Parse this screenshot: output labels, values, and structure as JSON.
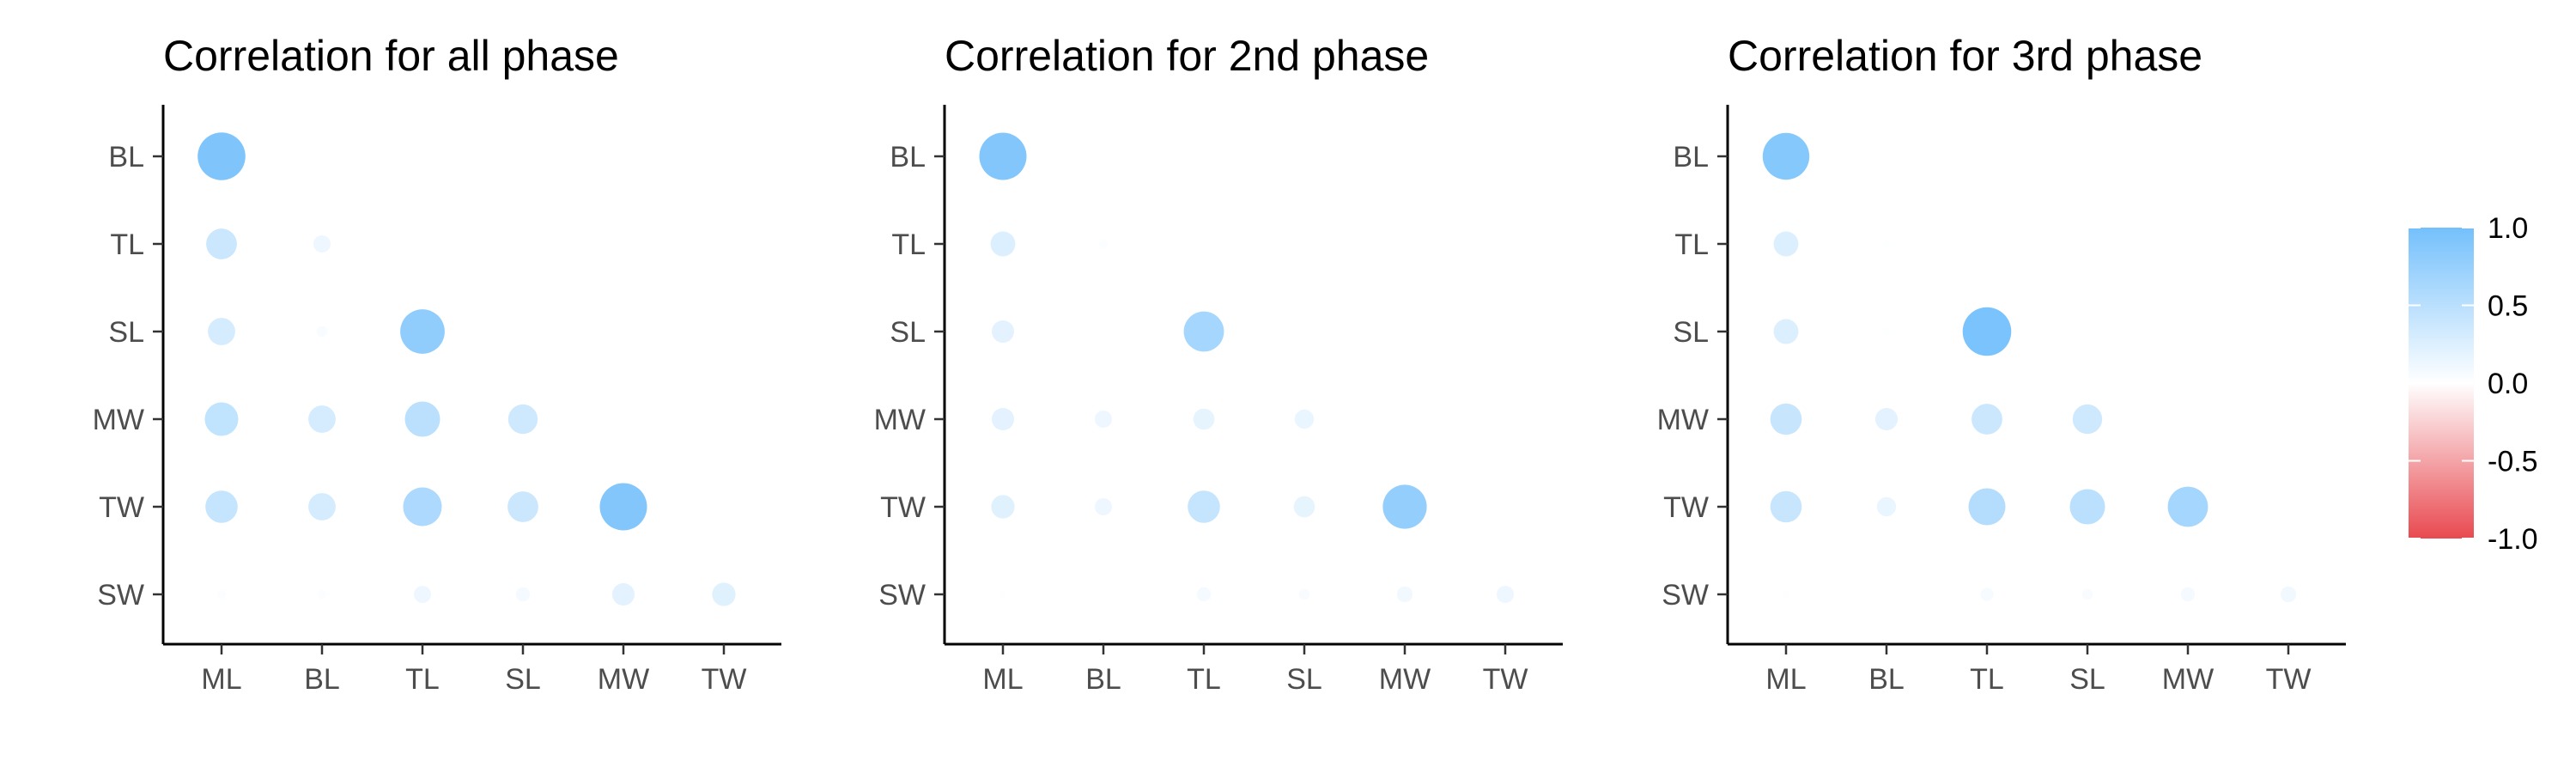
{
  "chart_data": [
    {
      "type": "heatmap",
      "title": "Correlation for all phase",
      "x_categories": [
        "ML",
        "BL",
        "TL",
        "SL",
        "MW",
        "TW"
      ],
      "y_categories": [
        "BL",
        "TL",
        "SL",
        "MW",
        "TW",
        "SW"
      ],
      "cells": [
        {
          "x": "ML",
          "y": "BL",
          "value": 0.92
        },
        {
          "x": "ML",
          "y": "TL",
          "value": 0.38
        },
        {
          "x": "BL",
          "y": "TL",
          "value": 0.12
        },
        {
          "x": "ML",
          "y": "SL",
          "value": 0.3
        },
        {
          "x": "BL",
          "y": "SL",
          "value": 0.05
        },
        {
          "x": "TL",
          "y": "SL",
          "value": 0.8
        },
        {
          "x": "ML",
          "y": "MW",
          "value": 0.45
        },
        {
          "x": "BL",
          "y": "MW",
          "value": 0.3
        },
        {
          "x": "TL",
          "y": "MW",
          "value": 0.5
        },
        {
          "x": "SL",
          "y": "MW",
          "value": 0.35
        },
        {
          "x": "ML",
          "y": "TW",
          "value": 0.42
        },
        {
          "x": "BL",
          "y": "TW",
          "value": 0.3
        },
        {
          "x": "TL",
          "y": "TW",
          "value": 0.6
        },
        {
          "x": "SL",
          "y": "TW",
          "value": 0.38
        },
        {
          "x": "MW",
          "y": "TW",
          "value": 0.9
        },
        {
          "x": "ML",
          "y": "SW",
          "value": 0.03
        },
        {
          "x": "BL",
          "y": "SW",
          "value": 0.03
        },
        {
          "x": "TL",
          "y": "SW",
          "value": 0.12
        },
        {
          "x": "SL",
          "y": "SW",
          "value": 0.08
        },
        {
          "x": "MW",
          "y": "SW",
          "value": 0.2
        },
        {
          "x": "TW",
          "y": "SW",
          "value": 0.22
        }
      ]
    },
    {
      "type": "heatmap",
      "title": "Correlation for 2nd phase",
      "x_categories": [
        "ML",
        "BL",
        "TL",
        "SL",
        "MW",
        "TW"
      ],
      "y_categories": [
        "BL",
        "TL",
        "SL",
        "MW",
        "TW",
        "SW"
      ],
      "cells": [
        {
          "x": "ML",
          "y": "BL",
          "value": 0.9
        },
        {
          "x": "ML",
          "y": "TL",
          "value": 0.25
        },
        {
          "x": "BL",
          "y": "TL",
          "value": 0.03
        },
        {
          "x": "ML",
          "y": "SL",
          "value": 0.2
        },
        {
          "x": "TL",
          "y": "SL",
          "value": 0.65
        },
        {
          "x": "ML",
          "y": "MW",
          "value": 0.2
        },
        {
          "x": "BL",
          "y": "MW",
          "value": 0.12
        },
        {
          "x": "TL",
          "y": "MW",
          "value": 0.18
        },
        {
          "x": "SL",
          "y": "MW",
          "value": 0.15
        },
        {
          "x": "ML",
          "y": "TW",
          "value": 0.22
        },
        {
          "x": "BL",
          "y": "TW",
          "value": 0.12
        },
        {
          "x": "TL",
          "y": "TW",
          "value": 0.42
        },
        {
          "x": "SL",
          "y": "TW",
          "value": 0.18
        },
        {
          "x": "MW",
          "y": "TW",
          "value": 0.78
        },
        {
          "x": "ML",
          "y": "SW",
          "value": 0.02
        },
        {
          "x": "TL",
          "y": "SW",
          "value": 0.08
        },
        {
          "x": "SL",
          "y": "SW",
          "value": 0.05
        },
        {
          "x": "MW",
          "y": "SW",
          "value": 0.1
        },
        {
          "x": "TW",
          "y": "SW",
          "value": 0.12
        }
      ]
    },
    {
      "type": "heatmap",
      "title": "Correlation for 3rd phase",
      "x_categories": [
        "ML",
        "BL",
        "TL",
        "SL",
        "MW",
        "TW"
      ],
      "y_categories": [
        "BL",
        "TL",
        "SL",
        "MW",
        "TW",
        "SW"
      ],
      "cells": [
        {
          "x": "ML",
          "y": "BL",
          "value": 0.88
        },
        {
          "x": "ML",
          "y": "TL",
          "value": 0.25
        },
        {
          "x": "BL",
          "y": "TL",
          "value": 0.02
        },
        {
          "x": "ML",
          "y": "SL",
          "value": 0.25
        },
        {
          "x": "BL",
          "y": "SL",
          "value": 0.02
        },
        {
          "x": "TL",
          "y": "SL",
          "value": 0.95
        },
        {
          "x": "ML",
          "y": "MW",
          "value": 0.4
        },
        {
          "x": "BL",
          "y": "MW",
          "value": 0.2
        },
        {
          "x": "TL",
          "y": "MW",
          "value": 0.38
        },
        {
          "x": "SL",
          "y": "MW",
          "value": 0.35
        },
        {
          "x": "ML",
          "y": "TW",
          "value": 0.4
        },
        {
          "x": "BL",
          "y": "TW",
          "value": 0.15
        },
        {
          "x": "TL",
          "y": "TW",
          "value": 0.55
        },
        {
          "x": "SL",
          "y": "TW",
          "value": 0.5
        },
        {
          "x": "MW",
          "y": "TW",
          "value": 0.65
        },
        {
          "x": "ML",
          "y": "SW",
          "value": 0.02
        },
        {
          "x": "TL",
          "y": "SW",
          "value": 0.07
        },
        {
          "x": "SL",
          "y": "SW",
          "value": 0.05
        },
        {
          "x": "MW",
          "y": "SW",
          "value": 0.08
        },
        {
          "x": "TW",
          "y": "SW",
          "value": 0.1
        }
      ]
    }
  ],
  "legend": {
    "ticks": [
      "1.0",
      "0.5",
      "0.0",
      "-0.5",
      "-1.0"
    ],
    "range": [
      -1,
      1
    ],
    "colors": {
      "high": "#74C0FC",
      "mid": "#FFFFFF",
      "low": "#E84A50"
    }
  }
}
